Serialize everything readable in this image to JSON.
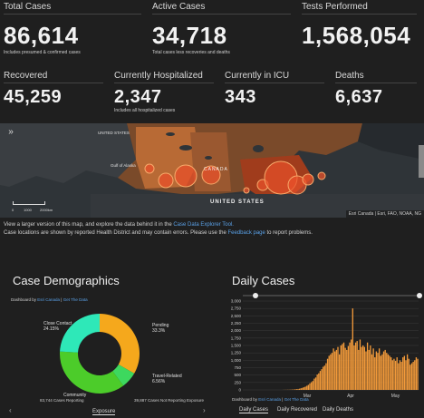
{
  "stats_top": [
    {
      "label": "Total Cases",
      "value": "86,614",
      "sub": "Includes presumed & confirmed cases"
    },
    {
      "label": "Active Cases",
      "value": "34,718",
      "sub": "Total cases less recoveries and deaths"
    },
    {
      "label": "Tests Performed",
      "value": "1,568,054",
      "sub": ""
    }
  ],
  "stats_bottom": [
    {
      "label": "Recovered",
      "value": "45,259",
      "sub": ""
    },
    {
      "label": "Currently Hospitalized",
      "value": "2,347",
      "sub": "Includes all hospitalized cases"
    },
    {
      "label": "Currently in ICU",
      "value": "343",
      "sub": ""
    },
    {
      "label": "Deaths",
      "value": "6,637",
      "sub": ""
    }
  ],
  "map": {
    "label_us_top": "UNITED STATES",
    "label_gulf": "Gulf of Alaska",
    "label_canada": "CANADA",
    "label_us_bottom": "UNITED STATES",
    "attribution": "Esri Canada | Esri, FAO, NOAA, NG",
    "scale_0": "0",
    "scale_mid": "1000",
    "scale_end": "2000km",
    "expand_icon": "double-chevron-right-icon"
  },
  "note": {
    "line1_pre": "View a larger version of this map, and explore the data behind it in the ",
    "line1_link": "Case Data Explorer Tool.",
    "line2_pre": "Case locations are shown by reported Health District and may contain errors. Please use the ",
    "line2_link": "Feedback page",
    "line2_post": " to report problems."
  },
  "demographics": {
    "title": "Case Demographics",
    "dashboard_pre": "Dashboard by ",
    "dashboard_link1": "Esri Canada",
    "dashboard_sep": " | ",
    "dashboard_link2": "Get The Data",
    "footer_left": "83,744 Cases Reporting",
    "footer_right": "39,887 Cases Not Reporting Exposure",
    "exposure_label": "Exposure",
    "colors": {
      "close": "#2ee8b8",
      "pending": "#f5a81c",
      "travel": "#3dd85e",
      "community": "#4ccc2a"
    }
  },
  "chart_data": [
    {
      "type": "pie",
      "title": "Case Demographics",
      "categories": [
        "Pending",
        "Travel-Related",
        "Community",
        "Close Contact"
      ],
      "values": [
        33.3,
        6.56,
        36.0,
        24.15
      ],
      "labels": [
        "Pending 33.3%",
        "Travel-Related 6.56%",
        "Community",
        "Close Contact 24.15%"
      ]
    },
    {
      "type": "bar",
      "title": "Daily Cases",
      "yticks": [
        "0",
        "250",
        "500",
        "750",
        "1,000",
        "1,250",
        "1,500",
        "1,750",
        "2,000",
        "2,250",
        "2,500",
        "2,750",
        "3,000"
      ],
      "xticks": [
        "Mar",
        "Apr",
        "May"
      ],
      "ylim": [
        0,
        3000
      ],
      "values": [
        2,
        3,
        4,
        5,
        6,
        8,
        10,
        14,
        18,
        25,
        32,
        40,
        55,
        70,
        90,
        110,
        140,
        170,
        220,
        260,
        300,
        380,
        420,
        520,
        560,
        640,
        700,
        780,
        820,
        900,
        1050,
        1150,
        1200,
        1250,
        1400,
        1300,
        1350,
        1450,
        1200,
        1500,
        1550,
        1600,
        1420,
        1350,
        1480,
        1600,
        1700,
        2750,
        1500,
        1600,
        1650,
        1350,
        1700,
        1450,
        1500,
        1450,
        1300,
        1600,
        1350,
        1500,
        1200,
        1400,
        1100,
        1300,
        1250,
        1400,
        1150,
        1200,
        1300,
        1350,
        1250,
        1200,
        1150,
        1100,
        1000,
        1050,
        980,
        1100,
        900,
        1000,
        950,
        1100,
        1150,
        1000,
        1200,
        1050,
        850,
        900,
        950,
        1000,
        1100,
        1050
      ]
    }
  ],
  "daily": {
    "title": "Daily Cases",
    "dashboard_pre": "Dashboard by ",
    "dashboard_link1": "Esri Canada",
    "dashboard_sep": " | ",
    "dashboard_link2": "Get The Data",
    "tabs": [
      "Daily Cases",
      "Daily Recovered",
      "Daily Deaths"
    ],
    "bar_color": "#f29a3a"
  }
}
